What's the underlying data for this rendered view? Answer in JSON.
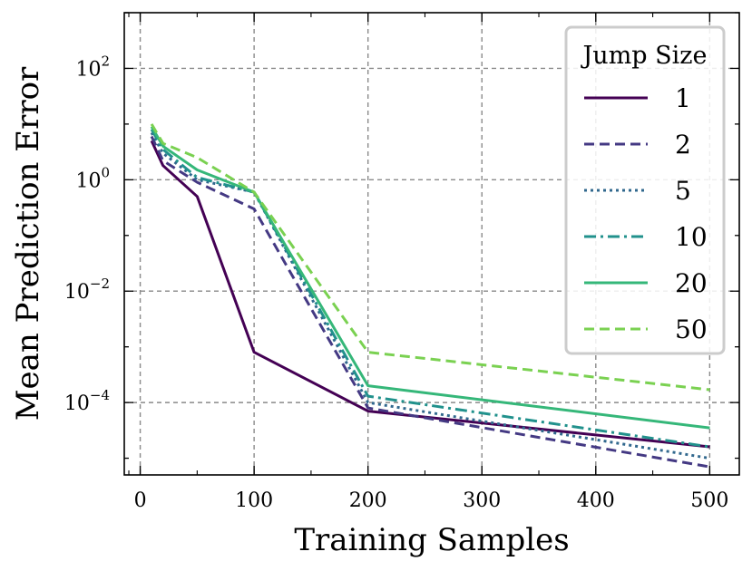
{
  "chart_data": {
    "type": "line",
    "title": "",
    "xlabel": "Training Samples",
    "ylabel": "Mean Prediction Error",
    "yscale": "log",
    "xlim": [
      -14,
      526
    ],
    "ylim_log10": [
      -5.3,
      3.0
    ],
    "x_ticks": [
      0,
      100,
      200,
      300,
      400,
      500
    ],
    "x_tick_labels": [
      "0",
      "100",
      "200",
      "300",
      "400",
      "500"
    ],
    "y_ticks_log10": [
      2,
      0,
      -2,
      -4
    ],
    "y_tick_labels": [
      {
        "base": "10",
        "exp": "2"
      },
      {
        "base": "10",
        "exp": "0"
      },
      {
        "base": "10",
        "exp": "−2"
      },
      {
        "base": "10",
        "exp": "−4"
      }
    ],
    "grid": true,
    "legend": {
      "title": "Jump Size",
      "placement": "top-right"
    },
    "series": [
      {
        "name": "1",
        "color": "#440154",
        "dash": "solid",
        "x": [
          10,
          20,
          50,
          100,
          200,
          500
        ],
        "y": [
          5.0,
          1.8,
          0.5,
          0.0008,
          7e-05,
          1.6e-05
        ]
      },
      {
        "name": "2",
        "color": "#443983",
        "dash": "dashed",
        "x": [
          10,
          20,
          50,
          100,
          200,
          500
        ],
        "y": [
          6.0,
          2.2,
          0.9,
          0.3,
          8e-05,
          7e-06
        ]
      },
      {
        "name": "5",
        "color": "#31688e",
        "dash": "dotted",
        "x": [
          10,
          20,
          50,
          100,
          200,
          500
        ],
        "y": [
          7.0,
          3.0,
          1.0,
          0.6,
          0.0001,
          1e-05
        ]
      },
      {
        "name": "10",
        "color": "#21918c",
        "dash": "dashdot",
        "x": [
          10,
          20,
          50,
          100,
          200,
          500
        ],
        "y": [
          8.0,
          3.5,
          1.1,
          0.6,
          0.00013,
          1.6e-05
        ]
      },
      {
        "name": "20",
        "color": "#35b779",
        "dash": "solid",
        "x": [
          10,
          20,
          50,
          100,
          200,
          500
        ],
        "y": [
          9.0,
          4.0,
          1.5,
          0.6,
          0.0002,
          3.5e-05
        ]
      },
      {
        "name": "50",
        "color": "#7ad151",
        "dash": "dashed",
        "x": [
          10,
          20,
          50,
          100,
          200,
          500
        ],
        "y": [
          10.0,
          4.5,
          2.5,
          0.6,
          0.0008,
          0.00017
        ]
      }
    ]
  }
}
